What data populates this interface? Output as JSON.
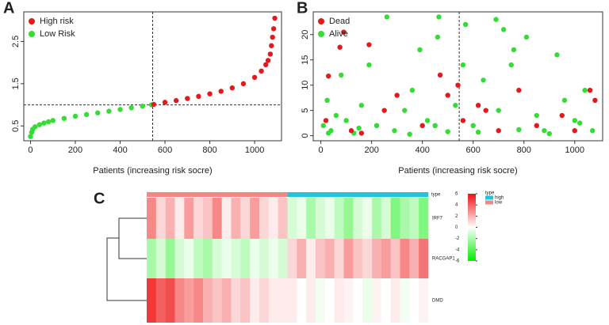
{
  "chart_data": [
    {
      "type": "scatter",
      "title": "A",
      "xlabel": "Patients (increasing risk socre)",
      "xlim": [
        -30,
        1120
      ],
      "xticks": [
        0,
        200,
        400,
        600,
        800,
        1000
      ],
      "ylim": [
        0.15,
        3.2
      ],
      "yticks": [
        0.5,
        1.5,
        2.5
      ],
      "cutoff_x": 545,
      "cutoff_y": 1.0,
      "legend": "top-left",
      "series": [
        {
          "name": "High risk",
          "color": "#e31a1c",
          "x": [
            550,
            600,
            650,
            700,
            750,
            800,
            850,
            900,
            950,
            1000,
            1030,
            1050,
            1060,
            1070,
            1075,
            1080,
            1085,
            1090
          ],
          "values": [
            1.01,
            1.06,
            1.1,
            1.15,
            1.2,
            1.26,
            1.32,
            1.4,
            1.5,
            1.65,
            1.8,
            1.95,
            2.05,
            2.2,
            2.4,
            2.6,
            2.8,
            3.05
          ]
        },
        {
          "name": "Low Risk",
          "color": "#33dd33",
          "x": [
            0,
            5,
            10,
            20,
            40,
            60,
            80,
            100,
            150,
            200,
            250,
            300,
            350,
            400,
            450,
            500,
            540
          ],
          "values": [
            0.25,
            0.35,
            0.42,
            0.48,
            0.53,
            0.57,
            0.6,
            0.63,
            0.68,
            0.73,
            0.77,
            0.81,
            0.85,
            0.89,
            0.93,
            0.97,
            1.0
          ]
        }
      ]
    },
    {
      "type": "scatter",
      "title": "B",
      "xlabel": "Patients (increasing risk socre)",
      "xlim": [
        -30,
        1110
      ],
      "xticks": [
        0,
        200,
        400,
        600,
        800,
        1000
      ],
      "ylim": [
        -1,
        24.5
      ],
      "yticks": [
        0,
        5,
        10,
        15,
        20
      ],
      "cutoff_x": 545,
      "legend": "top-left",
      "series": [
        {
          "name": "Dead",
          "color": "#e31a1c",
          "x": [
            20,
            30,
            75,
            90,
            120,
            190,
            250,
            300,
            400,
            470,
            500,
            560,
            620,
            650,
            700,
            780,
            850,
            950,
            1000,
            1060,
            1080,
            160,
            540
          ],
          "values": [
            3,
            11.8,
            17.5,
            20.5,
            1,
            18,
            5,
            8,
            2,
            12,
            8,
            3,
            6,
            5,
            1,
            9,
            2,
            4,
            1,
            9,
            7,
            0.5,
            10
          ]
        },
        {
          "name": "Alive",
          "color": "#33dd33",
          "x": [
            10,
            25,
            40,
            60,
            80,
            100,
            130,
            160,
            190,
            220,
            260,
            290,
            330,
            360,
            390,
            420,
            460,
            465,
            500,
            530,
            560,
            570,
            600,
            640,
            690,
            720,
            750,
            760,
            810,
            850,
            880,
            930,
            960,
            1000,
            1040,
            1070,
            30,
            150,
            350,
            450,
            620,
            780,
            900,
            1020,
            700
          ],
          "values": [
            2,
            7,
            1,
            4,
            12,
            3,
            0.5,
            6,
            14,
            2,
            23.5,
            1,
            5,
            9,
            17,
            3,
            19.5,
            23.5,
            0.8,
            6,
            14,
            22,
            2,
            11,
            23,
            21,
            14,
            17,
            19.5,
            4,
            1,
            16,
            7,
            3,
            9,
            1,
            0.5,
            1.5,
            0.3,
            2,
            0.7,
            1.2,
            0.4,
            2.5,
            5
          ]
        }
      ]
    },
    {
      "type": "heatmap",
      "title": "C",
      "annotation_row_label": "type",
      "rows": [
        "IRF7",
        "RACGAP1",
        "DMD"
      ],
      "column_types": [
        "low",
        "low",
        "low",
        "low",
        "low",
        "low",
        "low",
        "low",
        "low",
        "low",
        "low",
        "low",
        "low",
        "low",
        "low",
        "high",
        "high",
        "high",
        "high",
        "high",
        "high",
        "high",
        "high",
        "high",
        "high",
        "high",
        "high",
        "high",
        "high",
        "high"
      ],
      "legend_title": "type",
      "groups": [
        {
          "name": "high",
          "color": "#22c5d8"
        },
        {
          "name": "low",
          "color": "#f08a80"
        }
      ],
      "clim": [
        -6,
        6
      ],
      "colors": [
        "#00ee00",
        "#ffffff",
        "#ee1111"
      ],
      "colorbar_ticks": [
        6,
        4,
        2,
        0,
        -2,
        -4,
        -6
      ],
      "values": [
        [
          3,
          1,
          2,
          0.5,
          2.5,
          1,
          1.5,
          3,
          0.5,
          2,
          1,
          2.5,
          1,
          0.5,
          1.5,
          -1,
          -0.5,
          -2,
          -1,
          -0.5,
          -1.5,
          -2.5,
          -1,
          -0.5,
          -2,
          -1,
          -3,
          -2,
          -1.5,
          -3
        ],
        [
          -2,
          -1,
          -2.5,
          -1,
          -0.5,
          -1.5,
          -2,
          -1,
          -0.5,
          -1,
          -1.5,
          -0.5,
          -1,
          -0.5,
          -1,
          1,
          2,
          0.5,
          1.5,
          2,
          1,
          2.5,
          1.5,
          1,
          2,
          2.5,
          1.5,
          3,
          2,
          3.5
        ],
        [
          5,
          4,
          4.5,
          3,
          2.5,
          3,
          2,
          1.5,
          2,
          1,
          1.5,
          0.5,
          1,
          0.5,
          0.5,
          0.5,
          0,
          0.5,
          -0.3,
          0,
          0.5,
          0.3,
          0,
          -0.5,
          0.3,
          0,
          0.5,
          -0.3,
          0,
          0.3
        ]
      ]
    }
  ]
}
